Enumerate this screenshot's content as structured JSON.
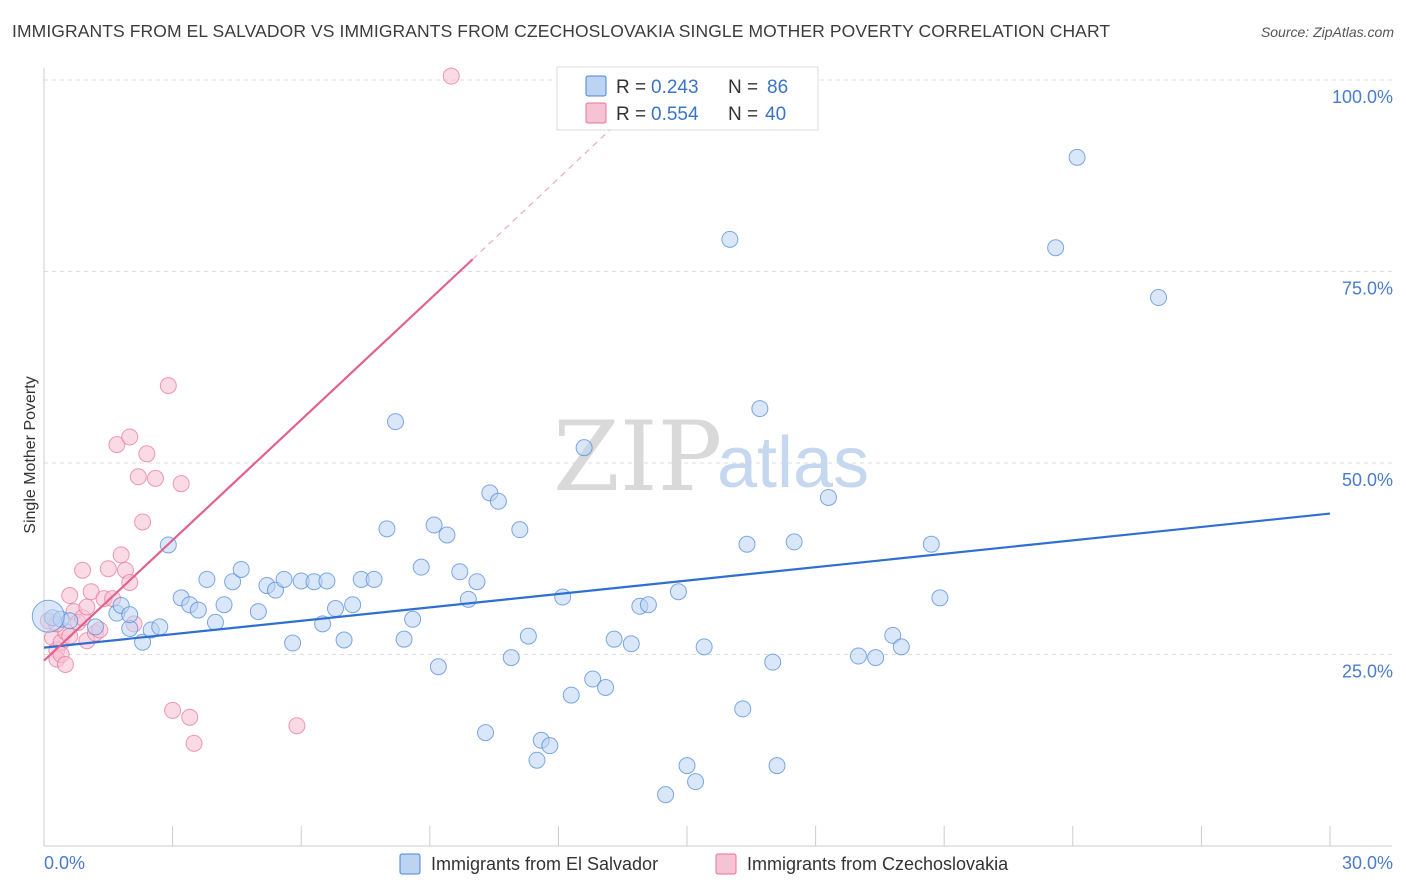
{
  "title": "IMMIGRANTS FROM EL SALVADOR VS IMMIGRANTS FROM CZECHOSLOVAKIA SINGLE MOTHER POVERTY CORRELATION CHART",
  "source": "Source: ZipAtlas.com",
  "watermark": {
    "part1": "ZIP",
    "part2": "atlas"
  },
  "legend": {
    "series1": {
      "r_label": "R =",
      "r_value": "0.243",
      "n_label": "N =",
      "n_value": "86"
    },
    "series2": {
      "r_label": "R =",
      "r_value": "0.554",
      "n_label": "N =",
      "n_value": "40"
    }
  },
  "bottom_legend": {
    "series1": "Immigrants from El Salvador",
    "series2": "Immigrants from Czechoslovakia"
  },
  "colors": {
    "blue": "#4a86d8",
    "blue_fill": "#bcd3f2",
    "pink": "#e8709a",
    "pink_fill": "#f6c3d4",
    "axis_text": "#4a7cc9"
  },
  "chart_data": {
    "type": "scatter",
    "xlabel": "",
    "ylabel": "Single Mother Poverty",
    "xlim": [
      0,
      30
    ],
    "ylim": [
      0,
      100
    ],
    "x_tick_labels": {
      "min": "0.0%",
      "max": "30.0%"
    },
    "y_tick_labels": [
      "25.0%",
      "50.0%",
      "75.0%",
      "100.0%"
    ],
    "y_ticks": [
      25,
      50,
      75,
      100
    ],
    "grid": true,
    "legend_position": "top-center",
    "series": [
      {
        "name": "Immigrants from El Salvador",
        "color": "#4a86d8",
        "trend": {
          "x0": 0,
          "y0": 25.9,
          "x1": 30,
          "y1": 43.4
        },
        "points": [
          [
            0.2,
            29.8
          ],
          [
            0.4,
            29.6
          ],
          [
            0.6,
            29.4
          ],
          [
            1.2,
            28.6
          ],
          [
            1.7,
            30.4
          ],
          [
            1.8,
            31.4
          ],
          [
            2.0,
            28.4
          ],
          [
            2.0,
            30.2
          ],
          [
            2.3,
            26.6
          ],
          [
            2.5,
            28.2
          ],
          [
            2.7,
            28.6
          ],
          [
            2.9,
            39.3
          ],
          [
            3.2,
            32.4
          ],
          [
            3.4,
            31.5
          ],
          [
            3.6,
            30.8
          ],
          [
            3.8,
            34.8
          ],
          [
            4.0,
            29.2
          ],
          [
            4.2,
            31.5
          ],
          [
            4.4,
            34.5
          ],
          [
            4.6,
            36.1
          ],
          [
            5.0,
            30.6
          ],
          [
            5.2,
            34.0
          ],
          [
            5.4,
            33.4
          ],
          [
            5.6,
            34.8
          ],
          [
            5.8,
            26.5
          ],
          [
            6.0,
            34.6
          ],
          [
            6.3,
            34.5
          ],
          [
            6.5,
            29.0
          ],
          [
            6.6,
            34.6
          ],
          [
            6.8,
            31.0
          ],
          [
            7.0,
            26.9
          ],
          [
            7.2,
            31.5
          ],
          [
            7.4,
            34.8
          ],
          [
            7.7,
            34.8
          ],
          [
            8.0,
            41.4
          ],
          [
            8.2,
            55.4
          ],
          [
            8.4,
            27.0
          ],
          [
            8.6,
            29.6
          ],
          [
            8.8,
            36.4
          ],
          [
            9.1,
            41.9
          ],
          [
            9.2,
            23.4
          ],
          [
            9.4,
            40.6
          ],
          [
            9.7,
            35.8
          ],
          [
            9.9,
            32.2
          ],
          [
            10.1,
            34.5
          ],
          [
            10.3,
            14.8
          ],
          [
            10.4,
            46.1
          ],
          [
            10.6,
            45.0
          ],
          [
            10.9,
            24.6
          ],
          [
            11.1,
            41.3
          ],
          [
            11.3,
            27.4
          ],
          [
            11.5,
            11.2
          ],
          [
            11.6,
            13.8
          ],
          [
            11.8,
            13.1
          ],
          [
            12.1,
            32.5
          ],
          [
            12.3,
            19.7
          ],
          [
            12.6,
            52.0
          ],
          [
            12.8,
            21.8
          ],
          [
            13.1,
            20.7
          ],
          [
            13.3,
            27.0
          ],
          [
            13.7,
            26.4
          ],
          [
            13.9,
            31.3
          ],
          [
            14.1,
            31.5
          ],
          [
            14.5,
            6.7
          ],
          [
            14.8,
            33.2
          ],
          [
            15.0,
            10.5
          ],
          [
            15.2,
            8.4
          ],
          [
            15.4,
            26.0
          ],
          [
            16.0,
            79.2
          ],
          [
            16.3,
            17.9
          ],
          [
            16.4,
            39.4
          ],
          [
            16.7,
            57.1
          ],
          [
            17.0,
            24.0
          ],
          [
            17.1,
            10.5
          ],
          [
            17.5,
            39.7
          ],
          [
            18.3,
            45.5
          ],
          [
            19.0,
            24.8
          ],
          [
            19.4,
            24.6
          ],
          [
            19.8,
            27.5
          ],
          [
            20.0,
            26.0
          ],
          [
            20.7,
            39.4
          ],
          [
            20.9,
            32.4
          ],
          [
            23.6,
            78.1
          ],
          [
            24.1,
            89.9
          ],
          [
            26.0,
            71.6
          ],
          [
            0.1,
            30.0
          ]
        ]
      },
      {
        "name": "Immigrants from Czechoslovakia",
        "color": "#e8709a",
        "trend": {
          "x0": 0,
          "y0": 24.2,
          "x1": 10,
          "y1": 76.6,
          "dashed_to": {
            "x": 13.3,
            "y": 94
          }
        },
        "points": [
          [
            0.1,
            29.4
          ],
          [
            0.2,
            27.2
          ],
          [
            0.3,
            25.6
          ],
          [
            0.3,
            24.4
          ],
          [
            0.4,
            26.6
          ],
          [
            0.4,
            25.0
          ],
          [
            0.5,
            28.0
          ],
          [
            0.5,
            23.7
          ],
          [
            0.6,
            27.4
          ],
          [
            0.6,
            32.7
          ],
          [
            0.7,
            30.6
          ],
          [
            0.8,
            29.2
          ],
          [
            0.9,
            29.8
          ],
          [
            0.9,
            36.0
          ],
          [
            1.0,
            31.2
          ],
          [
            1.0,
            26.8
          ],
          [
            1.1,
            33.2
          ],
          [
            1.2,
            27.8
          ],
          [
            1.3,
            28.2
          ],
          [
            1.4,
            32.3
          ],
          [
            1.5,
            36.2
          ],
          [
            1.6,
            32.3
          ],
          [
            1.7,
            52.4
          ],
          [
            1.8,
            38.0
          ],
          [
            1.9,
            36.0
          ],
          [
            2.0,
            53.4
          ],
          [
            2.0,
            34.4
          ],
          [
            2.1,
            29.0
          ],
          [
            2.2,
            48.2
          ],
          [
            2.3,
            42.3
          ],
          [
            2.4,
            51.2
          ],
          [
            2.6,
            48.0
          ],
          [
            2.9,
            60.1
          ],
          [
            3.0,
            17.7
          ],
          [
            3.2,
            47.3
          ],
          [
            3.4,
            16.8
          ],
          [
            3.5,
            13.4
          ],
          [
            5.9,
            15.7
          ],
          [
            9.5,
            100.5
          ],
          [
            0.3,
            29.0
          ]
        ]
      }
    ]
  }
}
